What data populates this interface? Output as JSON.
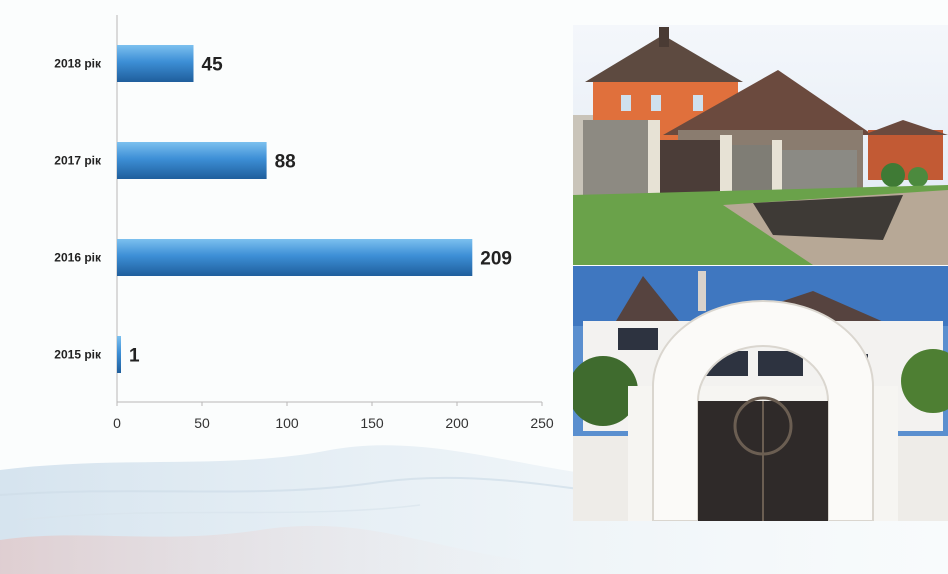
{
  "chart_data": {
    "type": "bar",
    "orientation": "horizontal",
    "categories": [
      "2018 рік",
      "2017 рік",
      "2016 рік",
      "2015 рік"
    ],
    "values": [
      45,
      88,
      209,
      1
    ],
    "data_labels": [
      "45",
      "88",
      "209",
      "1"
    ],
    "xlim": [
      0,
      250
    ],
    "xticks": [
      "0",
      "50",
      "100",
      "150",
      "200",
      "250"
    ],
    "title": "",
    "xlabel": "",
    "ylabel": "",
    "grid": false,
    "bar_color": "#3d8fd6",
    "bar_dark": "#1f5e9c"
  },
  "photos": {
    "top": "brick-houses-photo",
    "bottom": "white-gate-mansion-photo"
  }
}
